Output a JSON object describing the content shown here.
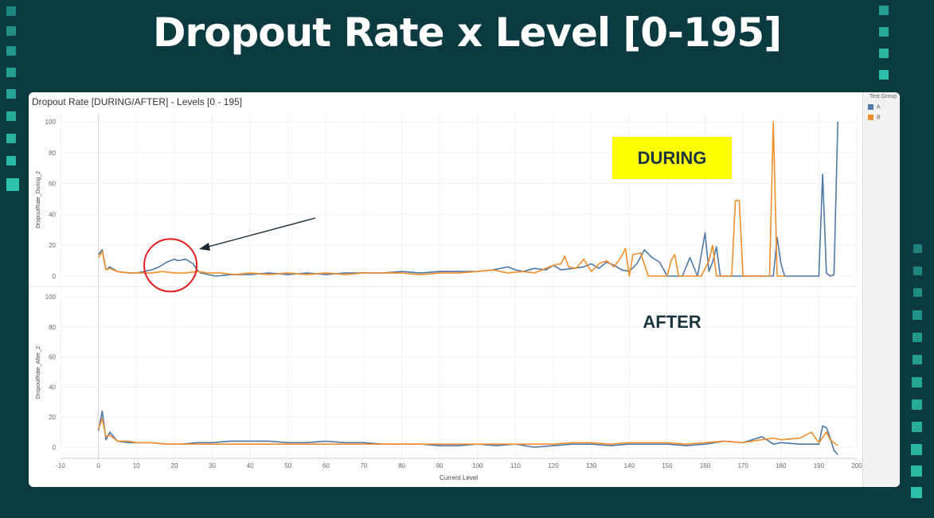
{
  "slide": {
    "title": "Dropout Rate x Level [0-195]"
  },
  "colors": {
    "background": "#0b3a40",
    "accent": "#2fc9b0",
    "series_a": "#4e79a7",
    "series_b": "#f28e2b",
    "highlight": "#ffff00",
    "circle": "#e02020"
  },
  "annotations": {
    "during_label": "DURING",
    "after_label": "AFTER"
  },
  "legend": {
    "title": "Test Group",
    "items": [
      "A",
      "B"
    ]
  },
  "chart_data": {
    "type": "line",
    "title": "Dropout Rate [DURING/AFTER] - Levels [0 - 195]",
    "xlabel": "Current Level",
    "xlim": [
      -10,
      200
    ],
    "x_ticks": [
      -10,
      0,
      10,
      20,
      30,
      40,
      50,
      60,
      70,
      80,
      90,
      100,
      110,
      120,
      130,
      140,
      150,
      160,
      170,
      180,
      190,
      200
    ],
    "legend_placement": "right",
    "grid": true,
    "panels": [
      {
        "ylabel": "DropoutRate_During_2",
        "ylim": [
          0,
          100
        ],
        "y_ticks": [
          0,
          20,
          40,
          60,
          80,
          100
        ],
        "series": [
          {
            "name": "A",
            "points": [
              [
                0,
                14
              ],
              [
                1,
                17
              ],
              [
                2,
                4
              ],
              [
                3,
                6
              ],
              [
                5,
                3
              ],
              [
                8,
                2
              ],
              [
                10,
                2
              ],
              [
                12,
                3
              ],
              [
                14,
                4
              ],
              [
                16,
                6
              ],
              [
                18,
                9
              ],
              [
                20,
                11
              ],
              [
                21,
                10
              ],
              [
                23,
                11
              ],
              [
                25,
                8
              ],
              [
                26,
                4
              ],
              [
                27,
                2
              ],
              [
                29,
                1
              ],
              [
                31,
                0
              ],
              [
                35,
                1
              ],
              [
                40,
                1
              ],
              [
                45,
                2
              ],
              [
                50,
                1
              ],
              [
                55,
                2
              ],
              [
                60,
                1
              ],
              [
                65,
                2
              ],
              [
                70,
                2
              ],
              [
                75,
                2
              ],
              [
                80,
                3
              ],
              [
                85,
                2
              ],
              [
                90,
                3
              ],
              [
                95,
                3
              ],
              [
                100,
                3
              ],
              [
                104,
                4
              ],
              [
                108,
                6
              ],
              [
                110,
                4
              ],
              [
                112,
                3
              ],
              [
                115,
                5
              ],
              [
                118,
                4
              ],
              [
                120,
                7
              ],
              [
                122,
                4
              ],
              [
                125,
                5
              ],
              [
                128,
                6
              ],
              [
                130,
                8
              ],
              [
                132,
                5
              ],
              [
                134,
                9
              ],
              [
                136,
                7
              ],
              [
                138,
                4
              ],
              [
                140,
                3
              ],
              [
                142,
                8
              ],
              [
                144,
                17
              ],
              [
                146,
                12
              ],
              [
                148,
                9
              ],
              [
                150,
                0
              ],
              [
                152,
                0
              ],
              [
                154,
                0
              ],
              [
                156,
                12
              ],
              [
                158,
                0
              ],
              [
                160,
                28
              ],
              [
                161,
                3
              ],
              [
                162,
                9
              ],
              [
                163,
                19
              ],
              [
                164,
                0
              ],
              [
                166,
                0
              ],
              [
                170,
                0
              ],
              [
                174,
                0
              ],
              [
                178,
                0
              ],
              [
                179,
                25
              ],
              [
                180,
                8
              ],
              [
                181,
                0
              ],
              [
                185,
                0
              ],
              [
                190,
                0
              ],
              [
                191,
                66
              ],
              [
                192,
                2
              ],
              [
                193,
                0
              ],
              [
                194,
                1
              ],
              [
                195,
                100
              ]
            ]
          },
          {
            "name": "B",
            "points": [
              [
                0,
                12
              ],
              [
                1,
                16
              ],
              [
                2,
                4
              ],
              [
                3,
                5
              ],
              [
                5,
                3
              ],
              [
                8,
                2
              ],
              [
                10,
                2
              ],
              [
                14,
                2
              ],
              [
                17,
                3
              ],
              [
                20,
                2
              ],
              [
                23,
                2
              ],
              [
                26,
                3
              ],
              [
                29,
                2
              ],
              [
                32,
                2
              ],
              [
                36,
                1
              ],
              [
                40,
                2
              ],
              [
                45,
                1
              ],
              [
                50,
                2
              ],
              [
                55,
                1
              ],
              [
                60,
                2
              ],
              [
                65,
                1
              ],
              [
                70,
                2
              ],
              [
                75,
                2
              ],
              [
                80,
                2
              ],
              [
                85,
                1
              ],
              [
                90,
                2
              ],
              [
                95,
                2
              ],
              [
                100,
                3
              ],
              [
                104,
                4
              ],
              [
                108,
                2
              ],
              [
                112,
                3
              ],
              [
                115,
                2
              ],
              [
                118,
                5
              ],
              [
                120,
                7
              ],
              [
                122,
                8
              ],
              [
                123,
                13
              ],
              [
                124,
                6
              ],
              [
                126,
                5
              ],
              [
                128,
                11
              ],
              [
                130,
                3
              ],
              [
                132,
                8
              ],
              [
                134,
                10
              ],
              [
                136,
                6
              ],
              [
                138,
                13
              ],
              [
                139,
                18
              ],
              [
                140,
                0
              ],
              [
                141,
                14
              ],
              [
                143,
                15
              ],
              [
                145,
                0
              ],
              [
                148,
                0
              ],
              [
                150,
                0
              ],
              [
                151,
                10
              ],
              [
                152,
                14
              ],
              [
                153,
                0
              ],
              [
                155,
                0
              ],
              [
                157,
                0
              ],
              [
                159,
                0
              ],
              [
                161,
                10
              ],
              [
                162,
                20
              ],
              [
                163,
                0
              ],
              [
                165,
                0
              ],
              [
                167,
                0
              ],
              [
                168,
                49
              ],
              [
                169,
                49
              ],
              [
                170,
                0
              ],
              [
                172,
                0
              ],
              [
                175,
                0
              ],
              [
                177,
                0
              ],
              [
                178,
                100
              ],
              [
                179,
                0
              ],
              [
                181,
                0
              ]
            ]
          }
        ]
      },
      {
        "ylabel": "DropoutRate_After_2",
        "ylim": [
          0,
          100
        ],
        "y_ticks": [
          0,
          20,
          40,
          60,
          80,
          100
        ],
        "series": [
          {
            "name": "A",
            "points": [
              [
                0,
                11
              ],
              [
                1,
                24
              ],
              [
                2,
                5
              ],
              [
                3,
                10
              ],
              [
                5,
                4
              ],
              [
                8,
                3
              ],
              [
                10,
                3
              ],
              [
                14,
                3
              ],
              [
                18,
                2
              ],
              [
                22,
                2
              ],
              [
                26,
                3
              ],
              [
                30,
                3
              ],
              [
                35,
                4
              ],
              [
                40,
                4
              ],
              [
                45,
                4
              ],
              [
                50,
                3
              ],
              [
                55,
                3
              ],
              [
                60,
                4
              ],
              [
                65,
                3
              ],
              [
                70,
                3
              ],
              [
                75,
                2
              ],
              [
                80,
                2
              ],
              [
                85,
                2
              ],
              [
                90,
                1
              ],
              [
                95,
                1
              ],
              [
                100,
                2
              ],
              [
                105,
                1
              ],
              [
                110,
                2
              ],
              [
                115,
                0
              ],
              [
                120,
                1
              ],
              [
                125,
                2
              ],
              [
                130,
                2
              ],
              [
                135,
                1
              ],
              [
                140,
                2
              ],
              [
                145,
                2
              ],
              [
                150,
                2
              ],
              [
                155,
                1
              ],
              [
                160,
                2
              ],
              [
                165,
                4
              ],
              [
                170,
                3
              ],
              [
                175,
                7
              ],
              [
                178,
                2
              ],
              [
                180,
                3
              ],
              [
                185,
                2
              ],
              [
                188,
                2
              ],
              [
                190,
                2
              ],
              [
                191,
                14
              ],
              [
                192,
                13
              ],
              [
                193,
                6
              ],
              [
                194,
                -2
              ],
              [
                195,
                -5
              ]
            ]
          },
          {
            "name": "B",
            "points": [
              [
                0,
                12
              ],
              [
                1,
                19
              ],
              [
                2,
                7
              ],
              [
                3,
                8
              ],
              [
                5,
                4
              ],
              [
                8,
                4
              ],
              [
                10,
                3
              ],
              [
                14,
                3
              ],
              [
                18,
                2
              ],
              [
                22,
                2
              ],
              [
                26,
                2
              ],
              [
                30,
                2
              ],
              [
                35,
                2
              ],
              [
                40,
                2
              ],
              [
                45,
                2
              ],
              [
                50,
                2
              ],
              [
                55,
                2
              ],
              [
                60,
                2
              ],
              [
                65,
                2
              ],
              [
                70,
                2
              ],
              [
                75,
                2
              ],
              [
                80,
                2
              ],
              [
                85,
                2
              ],
              [
                90,
                2
              ],
              [
                95,
                2
              ],
              [
                100,
                2
              ],
              [
                105,
                2
              ],
              [
                110,
                2
              ],
              [
                115,
                2
              ],
              [
                120,
                2
              ],
              [
                125,
                3
              ],
              [
                130,
                3
              ],
              [
                135,
                2
              ],
              [
                140,
                3
              ],
              [
                145,
                3
              ],
              [
                150,
                3
              ],
              [
                155,
                2
              ],
              [
                160,
                3
              ],
              [
                165,
                4
              ],
              [
                170,
                3
              ],
              [
                175,
                5
              ],
              [
                178,
                6
              ],
              [
                180,
                5
              ],
              [
                185,
                6
              ],
              [
                188,
                10
              ],
              [
                190,
                3
              ],
              [
                192,
                10
              ],
              [
                193,
                5
              ],
              [
                195,
                1
              ]
            ]
          }
        ]
      }
    ]
  }
}
